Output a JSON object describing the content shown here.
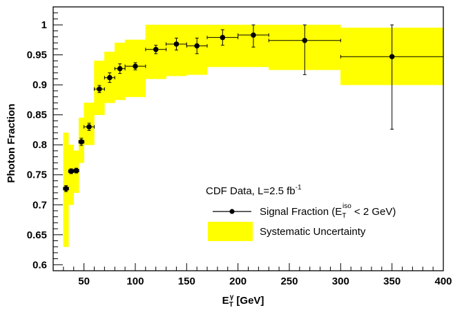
{
  "chart_data": {
    "type": "scatter",
    "title": "",
    "xlabel": "E",
    "xlabel_sub": "T",
    "xlabel_sup": "γ",
    "xlabel_unit": " [GeV]",
    "ylabel": "Photon Fraction",
    "xlim": [
      20,
      400
    ],
    "ylim": [
      0.59,
      1.03
    ],
    "xticks": [
      50,
      100,
      150,
      200,
      250,
      300,
      350,
      400
    ],
    "yticks": [
      0.6,
      0.65,
      0.7,
      0.75,
      0.8,
      0.85,
      0.9,
      0.95,
      1.0
    ],
    "ytick_labels": [
      "0.6",
      "0.65",
      "0.7",
      "0.75",
      "0.8",
      "0.85",
      "0.9",
      "0.95",
      "1"
    ],
    "colors": {
      "band": "#ffff00",
      "points": "#000000"
    },
    "legend": {
      "placement": "bottom-right",
      "header_prefix": "CDF Data, L=2.5 fb",
      "header_sup": "-1",
      "signal_prefix": "Signal Fraction (E",
      "signal_sub": "T",
      "signal_sup": "iso",
      "signal_suffix": " < 2 GeV)",
      "band_label": "Systematic Uncertainty"
    },
    "series": [
      {
        "kind": "band",
        "bins": [
          {
            "x0": 30,
            "x1": 35,
            "lo": 0.63,
            "hi": 0.82
          },
          {
            "x0": 35,
            "x1": 40,
            "lo": 0.7,
            "hi": 0.8
          },
          {
            "x0": 40,
            "x1": 45,
            "lo": 0.72,
            "hi": 0.79
          },
          {
            "x0": 45,
            "x1": 50,
            "lo": 0.77,
            "hi": 0.845
          },
          {
            "x0": 50,
            "x1": 60,
            "lo": 0.8,
            "hi": 0.87
          },
          {
            "x0": 60,
            "x1": 70,
            "lo": 0.85,
            "hi": 0.94
          },
          {
            "x0": 70,
            "x1": 80,
            "lo": 0.87,
            "hi": 0.955
          },
          {
            "x0": 80,
            "x1": 90,
            "lo": 0.875,
            "hi": 0.97
          },
          {
            "x0": 90,
            "x1": 110,
            "lo": 0.88,
            "hi": 0.975
          },
          {
            "x0": 110,
            "x1": 130,
            "lo": 0.91,
            "hi": 1.0
          },
          {
            "x0": 130,
            "x1": 150,
            "lo": 0.915,
            "hi": 1.0
          },
          {
            "x0": 150,
            "x1": 170,
            "lo": 0.917,
            "hi": 1.0
          },
          {
            "x0": 170,
            "x1": 200,
            "lo": 0.93,
            "hi": 1.0
          },
          {
            "x0": 200,
            "x1": 230,
            "lo": 0.93,
            "hi": 1.0
          },
          {
            "x0": 230,
            "x1": 300,
            "lo": 0.925,
            "hi": 1.0
          },
          {
            "x0": 300,
            "x1": 400,
            "lo": 0.9,
            "hi": 0.995
          }
        ]
      },
      {
        "kind": "points",
        "points": [
          {
            "x": 32.5,
            "y": 0.727,
            "xlo": 30,
            "xhi": 35,
            "ylo": 0.722,
            "yhi": 0.732
          },
          {
            "x": 37.5,
            "y": 0.756,
            "xlo": 35,
            "xhi": 40,
            "ylo": 0.752,
            "yhi": 0.76
          },
          {
            "x": 42.5,
            "y": 0.757,
            "xlo": 40,
            "xhi": 45,
            "ylo": 0.753,
            "yhi": 0.761
          },
          {
            "x": 47.5,
            "y": 0.805,
            "xlo": 45,
            "xhi": 50,
            "ylo": 0.799,
            "yhi": 0.811
          },
          {
            "x": 55,
            "y": 0.83,
            "xlo": 50,
            "xhi": 60,
            "ylo": 0.824,
            "yhi": 0.836
          },
          {
            "x": 65,
            "y": 0.893,
            "xlo": 60,
            "xhi": 70,
            "ylo": 0.887,
            "yhi": 0.899
          },
          {
            "x": 75,
            "y": 0.912,
            "xlo": 70,
            "xhi": 80,
            "ylo": 0.904,
            "yhi": 0.92
          },
          {
            "x": 85,
            "y": 0.927,
            "xlo": 80,
            "xhi": 90,
            "ylo": 0.919,
            "yhi": 0.935
          },
          {
            "x": 100,
            "y": 0.931,
            "xlo": 90,
            "xhi": 110,
            "ylo": 0.925,
            "yhi": 0.937
          },
          {
            "x": 120,
            "y": 0.959,
            "xlo": 110,
            "xhi": 130,
            "ylo": 0.952,
            "yhi": 0.966
          },
          {
            "x": 140,
            "y": 0.968,
            "xlo": 130,
            "xhi": 150,
            "ylo": 0.958,
            "yhi": 0.978
          },
          {
            "x": 160,
            "y": 0.965,
            "xlo": 150,
            "xhi": 170,
            "ylo": 0.952,
            "yhi": 0.978
          },
          {
            "x": 185,
            "y": 0.979,
            "xlo": 170,
            "xhi": 200,
            "ylo": 0.966,
            "yhi": 0.992
          },
          {
            "x": 215,
            "y": 0.983,
            "xlo": 200,
            "xhi": 230,
            "ylo": 0.963,
            "yhi": 1.0
          },
          {
            "x": 265,
            "y": 0.974,
            "xlo": 230,
            "xhi": 300,
            "ylo": 0.917,
            "yhi": 1.0
          },
          {
            "x": 350,
            "y": 0.947,
            "xlo": 300,
            "xhi": 400,
            "ylo": 0.826,
            "yhi": 1.0
          }
        ]
      }
    ]
  }
}
